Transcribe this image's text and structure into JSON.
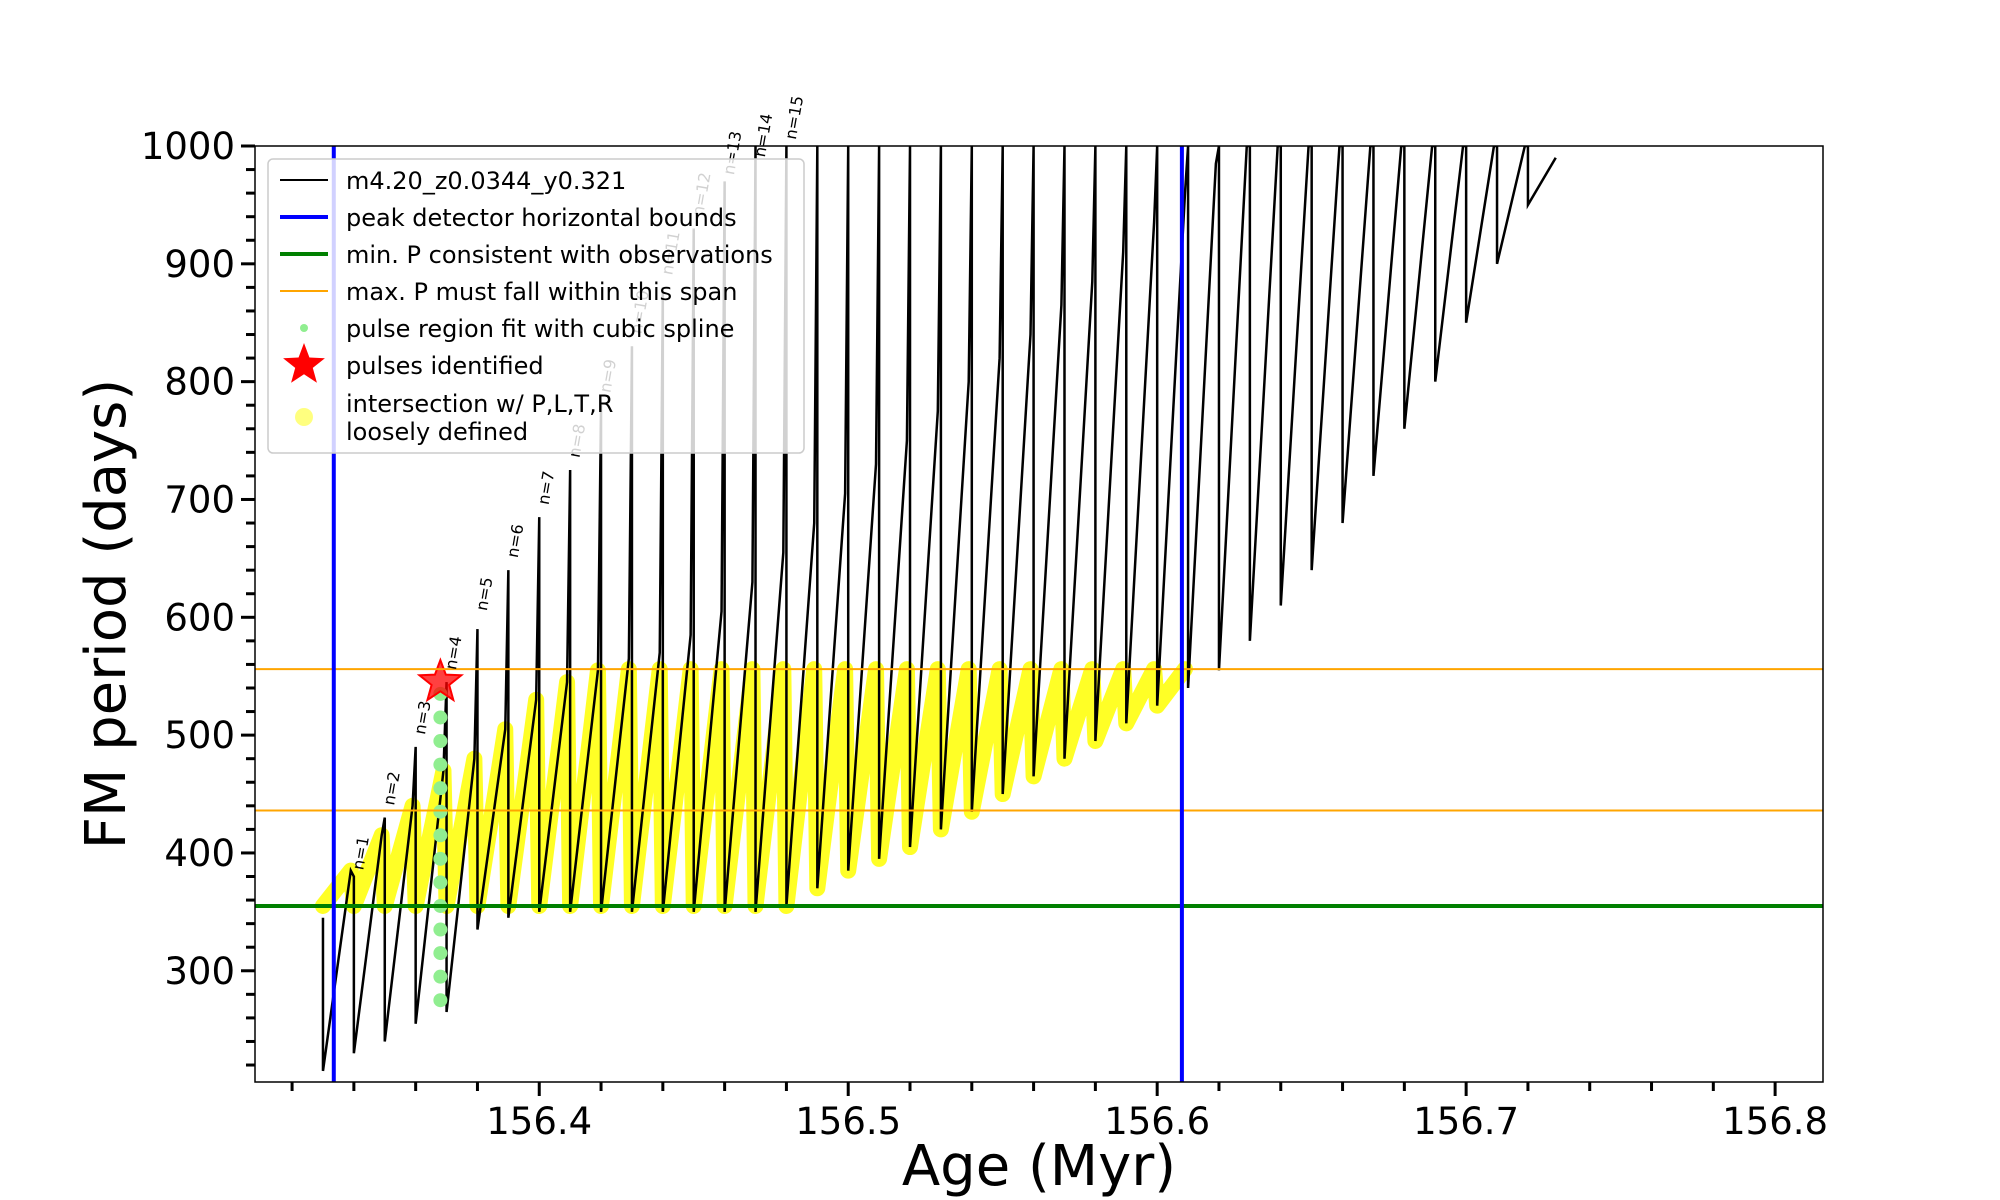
{
  "chart_data": {
    "type": "line",
    "xlabel": "Age (Myr)",
    "ylabel": "FM period (days)",
    "xlim": [
      156.308,
      156.8155
    ],
    "ylim": [
      205.6,
      1000
    ],
    "xticks": [
      156.4,
      156.5,
      156.6,
      156.7,
      156.8
    ],
    "yticks": [
      300,
      400,
      500,
      600,
      700,
      800,
      900,
      1000
    ],
    "xminorticks": [
      156.32,
      156.34,
      156.36,
      156.38,
      156.42,
      156.44,
      156.46,
      156.48,
      156.52,
      156.54,
      156.56,
      156.58,
      156.62,
      156.64,
      156.66,
      156.68,
      156.72,
      156.74,
      156.76,
      156.78
    ],
    "yminorticks": [
      220,
      240,
      260,
      280,
      320,
      340,
      360,
      380,
      420,
      440,
      460,
      480,
      520,
      540,
      560,
      580,
      620,
      640,
      660,
      680,
      720,
      740,
      760,
      780,
      820,
      840,
      860,
      880,
      920,
      940,
      960,
      980
    ],
    "legend": "upper left",
    "series": [
      {
        "name": "m4.20_z0.0344_y0.321",
        "color": "#000000",
        "type": "line",
        "x": [
          156.33,
          156.33,
          156.339,
          156.34,
          156.34,
          156.349,
          156.35,
          156.35,
          156.359,
          156.36,
          156.36,
          156.369,
          156.37,
          156.37,
          156.379,
          156.38,
          156.38,
          156.389,
          156.39,
          156.39,
          156.399,
          156.4,
          156.4,
          156.409,
          156.41,
          156.41,
          156.419,
          156.42,
          156.42,
          156.429,
          156.43,
          156.43,
          156.439,
          156.44,
          156.44,
          156.449,
          156.45,
          156.45,
          156.459,
          156.46,
          156.46,
          156.469,
          156.47,
          156.47,
          156.479,
          156.48,
          156.48,
          156.489,
          156.49,
          156.49,
          156.499,
          156.5,
          156.5,
          156.509,
          156.51,
          156.51,
          156.519,
          156.52,
          156.52,
          156.529,
          156.53,
          156.53,
          156.539,
          156.54,
          156.54,
          156.549,
          156.55,
          156.55,
          156.559,
          156.56,
          156.56,
          156.569,
          156.57,
          156.57,
          156.579,
          156.58,
          156.58,
          156.589,
          156.59,
          156.59,
          156.599,
          156.6,
          156.6,
          156.609,
          156.61,
          156.61,
          156.619,
          156.62,
          156.62,
          156.629,
          156.63,
          156.63,
          156.639,
          156.64,
          156.64,
          156.649,
          156.65,
          156.65,
          156.659,
          156.66,
          156.66,
          156.669,
          156.67,
          156.67,
          156.679,
          156.68,
          156.68,
          156.689,
          156.69,
          156.69,
          156.699,
          156.7,
          156.7,
          156.709,
          156.71,
          156.71,
          156.719,
          156.72,
          156.72,
          156.729
        ],
        "values": [
          345,
          215,
          385,
          380,
          230,
          415,
          430,
          240,
          440,
          490,
          255,
          470,
          545,
          265,
          480,
          590,
          335,
          505,
          640,
          345,
          530,
          685,
          350,
          545,
          725,
          350,
          555,
          780,
          350,
          565,
          830,
          350,
          570,
          880,
          350,
          585,
          930,
          350,
          605,
          970,
          350,
          630,
          1000,
          350,
          655,
          1000,
          355,
          680,
          1000,
          370,
          705,
          1000,
          385,
          730,
          1000,
          395,
          750,
          1000,
          405,
          775,
          1000,
          420,
          800,
          1000,
          435,
          820,
          1000,
          450,
          840,
          1000,
          465,
          865,
          1000,
          480,
          885,
          1000,
          495,
          910,
          1000,
          510,
          935,
          1000,
          525,
          960,
          1000,
          540,
          985,
          1000,
          555,
          1000,
          1000,
          580,
          1000,
          1000,
          610,
          1000,
          1000,
          640,
          1000,
          1000,
          680,
          1000,
          1000,
          720,
          1000,
          1000,
          760,
          1000,
          1000,
          800,
          1000,
          1000,
          850,
          1000,
          1000,
          900,
          1000,
          1000,
          950,
          990
        ]
      },
      {
        "name": "pulse region fit with cubic spline",
        "color": "#90ee90",
        "type": "scatter",
        "x": [
          156.368,
          156.368,
          156.368,
          156.368,
          156.368,
          156.368,
          156.368,
          156.368,
          156.368,
          156.368,
          156.368,
          156.368,
          156.368,
          156.368
        ],
        "values": [
          275,
          295,
          315,
          335,
          355,
          375,
          395,
          415,
          435,
          455,
          475,
          495,
          515,
          535
        ]
      },
      {
        "name": "pulses identified",
        "color": "#ff0000",
        "type": "star",
        "x": [
          156.368
        ],
        "values": [
          545
        ]
      },
      {
        "name": "intersection w/ P,L,T,R\nloosely defined",
        "color": "#ffff00",
        "type": "band",
        "x": [
          156.33,
          156.339,
          156.34,
          156.349,
          156.35,
          156.359,
          156.36,
          156.369,
          156.37,
          156.379,
          156.38,
          156.389,
          156.39,
          156.399,
          156.4,
          156.409,
          156.41,
          156.419,
          156.42,
          156.429,
          156.43,
          156.439,
          156.44,
          156.449,
          156.45,
          156.459,
          156.46,
          156.469,
          156.47,
          156.479,
          156.48,
          156.489,
          156.49,
          156.499,
          156.5,
          156.509,
          156.51,
          156.519,
          156.52,
          156.529,
          156.53,
          156.539,
          156.54,
          156.549,
          156.55,
          156.559,
          156.56,
          156.569,
          156.57,
          156.579,
          156.58,
          156.589,
          156.59,
          156.599,
          156.6,
          156.609
        ],
        "values": [
          355,
          385,
          355,
          415,
          355,
          440,
          355,
          470,
          355,
          480,
          355,
          505,
          355,
          530,
          355,
          545,
          355,
          555,
          355,
          556,
          355,
          556,
          355,
          556,
          355,
          556,
          355,
          556,
          355,
          556,
          355,
          556,
          370,
          556,
          385,
          556,
          395,
          556,
          405,
          556,
          420,
          556,
          435,
          556,
          450,
          556,
          465,
          556,
          480,
          556,
          495,
          556,
          510,
          556,
          525,
          556
        ]
      }
    ],
    "vlines": [
      {
        "name": "peak detector horizontal bounds",
        "color": "#0000ff",
        "values": [
          156.3335,
          156.608
        ]
      }
    ],
    "hlines": [
      {
        "name": "min. P consistent with observations",
        "color": "#008000",
        "values": [
          355
        ]
      },
      {
        "name": "max. P must fall within this span",
        "color": "#ffa500",
        "values": [
          436,
          556
        ]
      }
    ],
    "annotations": [
      {
        "text": "n=1",
        "x": 156.343,
        "y": 385
      },
      {
        "text": "n=2",
        "x": 156.353,
        "y": 440
      },
      {
        "text": "n=3",
        "x": 156.363,
        "y": 500
      },
      {
        "text": "n=4",
        "x": 156.373,
        "y": 555
      },
      {
        "text": "n=5",
        "x": 156.383,
        "y": 605
      },
      {
        "text": "n=6",
        "x": 156.393,
        "y": 650
      },
      {
        "text": "n=7",
        "x": 156.403,
        "y": 695
      },
      {
        "text": "n=8",
        "x": 156.413,
        "y": 735
      },
      {
        "text": "n=9",
        "x": 156.423,
        "y": 790
      },
      {
        "text": "n=10",
        "x": 156.433,
        "y": 840
      },
      {
        "text": "n=11",
        "x": 156.443,
        "y": 890
      },
      {
        "text": "n=12",
        "x": 156.453,
        "y": 940
      },
      {
        "text": "n=13",
        "x": 156.463,
        "y": 975
      },
      {
        "text": "n=14",
        "x": 156.473,
        "y": 990
      },
      {
        "text": "n=15",
        "x": 156.483,
        "y": 1005
      }
    ]
  }
}
